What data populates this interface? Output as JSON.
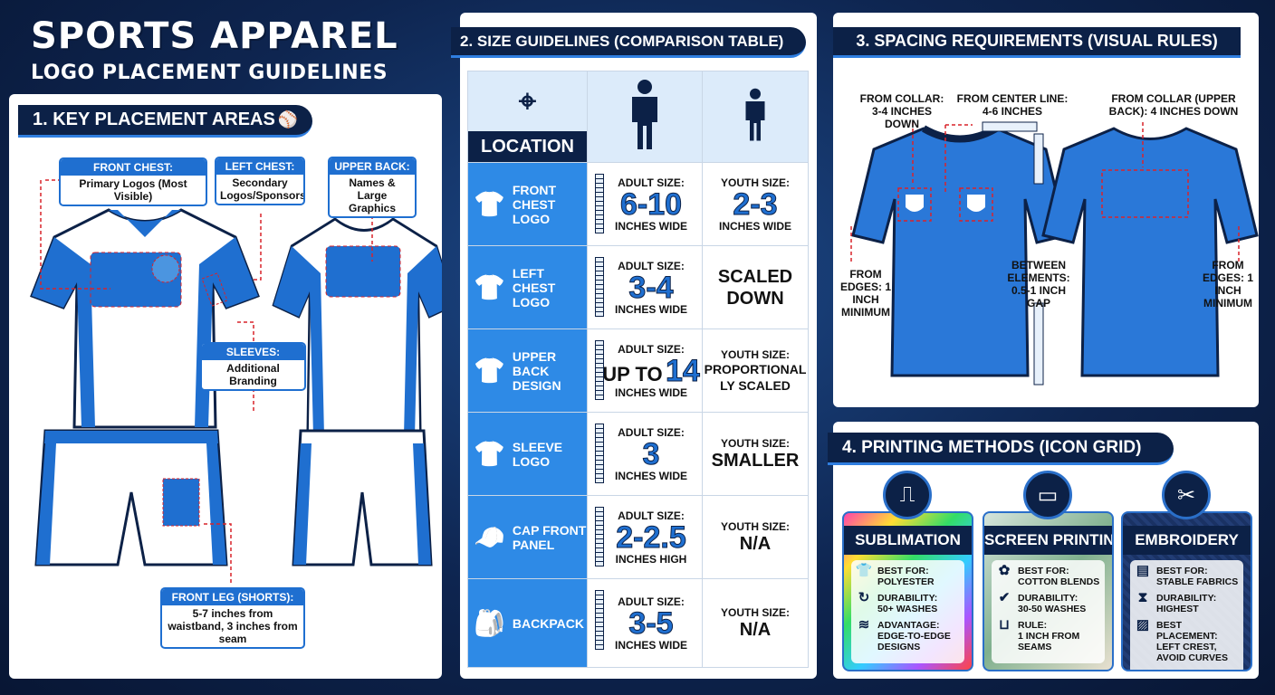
{
  "title": {
    "line1": "SPORTS APPAREL",
    "line2": "LOGO PLACEMENT GUIDELINES"
  },
  "colors": {
    "navy": "#0c2147",
    "blue": "#1f6fd0",
    "accent_red": "#d9232a"
  },
  "section1": {
    "heading": "1. KEY PLACEMENT AREAS",
    "labels": [
      {
        "title": "FRONT CHEST:",
        "text": "Primary Logos (Most Visible)"
      },
      {
        "title": "LEFT CHEST:",
        "text": "Secondary Logos/Sponsors"
      },
      {
        "title": "UPPER BACK:",
        "text": "Names & Large Graphics"
      },
      {
        "title": "SLEEVES:",
        "text": "Additional Branding"
      },
      {
        "title": "FRONT LEG (SHORTS):",
        "text": "5-7 inches from waistband, 3 inches from seam"
      }
    ]
  },
  "section2": {
    "heading": "2. SIZE GUIDELINES (COMPARISON TABLE)",
    "location_header": "LOCATION",
    "header_icons": [
      "map-pin-icon",
      "adult-person-icon",
      "youth-person-icon"
    ],
    "rows": [
      {
        "location": "FRONT CHEST LOGO",
        "icon": "shirt-front-chest-icon",
        "adult_label": "ADULT SIZE:",
        "adult_value": "6-10",
        "adult_unit": "INCHES WIDE",
        "youth_label": "YOUTH SIZE:",
        "youth_value": "2-3",
        "youth_unit": "INCHES WIDE"
      },
      {
        "location": "LEFT CHEST LOGO",
        "icon": "shirt-left-chest-icon",
        "adult_label": "ADULT SIZE:",
        "adult_value": "3-4",
        "adult_unit": "INCHES WIDE",
        "youth_label": "",
        "youth_value": "SCALED DOWN",
        "youth_unit": ""
      },
      {
        "location": "UPPER BACK DESIGN",
        "icon": "shirt-back-icon",
        "adult_label": "ADULT SIZE:",
        "adult_prefix": "UP TO",
        "adult_value": "14",
        "adult_unit": "INCHES WIDE",
        "youth_label": "YOUTH SIZE:",
        "youth_value": "PROPORTIONALLY SCALED",
        "youth_unit": ""
      },
      {
        "location": "SLEEVE LOGO",
        "icon": "shirt-sleeve-icon",
        "adult_label": "ADULT SIZE:",
        "adult_value": "3",
        "adult_unit": "INCHES WIDE",
        "youth_label": "YOUTH SIZE:",
        "youth_value": "SMALLER",
        "youth_unit": ""
      },
      {
        "location": "CAP FRONT PANEL",
        "icon": "cap-icon",
        "adult_label": "ADULT SIZE:",
        "adult_value": "2-2.5",
        "adult_unit": "INCHES HIGH",
        "youth_label": "YOUTH SIZE:",
        "youth_value": "N/A",
        "youth_unit": ""
      },
      {
        "location": "BACKPACK",
        "icon": "backpack-icon",
        "adult_label": "ADULT SIZE:",
        "adult_value": "3-5",
        "adult_unit": "INCHES WIDE",
        "youth_label": "YOUTH SIZE:",
        "youth_value": "N/A",
        "youth_unit": ""
      }
    ]
  },
  "section3": {
    "heading": "3. SPACING REQUIREMENTS (VISUAL RULES)",
    "notes": {
      "collar": "FROM COLLAR: 3-4 INCHES DOWN",
      "center": "FROM CENTER LINE: 4-6 INCHES",
      "upper_back": "FROM COLLAR (UPPER BACK): 4 INCHES DOWN",
      "edges_left": "FROM EDGES: 1 INCH MINIMUM",
      "between": "BETWEEN ELEMENTS: 0.5-1 INCH GAP",
      "edges_right": "FROM EDGES: 1 INCH MINIMUM"
    }
  },
  "section4": {
    "heading": "4. PRINTING METHODS (ICON GRID)",
    "methods": [
      {
        "name": "SUBLIMATION",
        "icon": "heat-press-icon",
        "items": [
          {
            "icon": "tshirt-icon",
            "label": "BEST FOR:",
            "value": "POLYESTER"
          },
          {
            "icon": "cycle-icon",
            "label": "DURABILITY:",
            "value": "50+ WASHES"
          },
          {
            "icon": "fabric-wave-icon",
            "label": "ADVANTAGE:",
            "value": "EDGE-TO-EDGE DESIGNS"
          }
        ]
      },
      {
        "name": "SCREEN PRINTING",
        "icon": "screen-frame-icon",
        "items": [
          {
            "icon": "cotton-icon",
            "label": "BEST FOR:",
            "value": "COTTON BLENDS"
          },
          {
            "icon": "shield-check-icon",
            "label": "DURABILITY:",
            "value": "30-50 WASHES"
          },
          {
            "icon": "seam-ruler-icon",
            "label": "RULE:",
            "value": "1 INCH FROM SEAMS"
          }
        ]
      },
      {
        "name": "EMBROIDERY",
        "icon": "sewing-machine-icon",
        "items": [
          {
            "icon": "fabric-icon",
            "label": "BEST FOR:",
            "value": "STABLE FABRICS"
          },
          {
            "icon": "thread-spool-icon",
            "label": "DURABILITY:",
            "value": "HIGHEST"
          },
          {
            "icon": "hatch-icon",
            "label": "BEST PLACEMENT:",
            "value": "LEFT CREST, AVOID CURVES"
          }
        ]
      }
    ]
  }
}
